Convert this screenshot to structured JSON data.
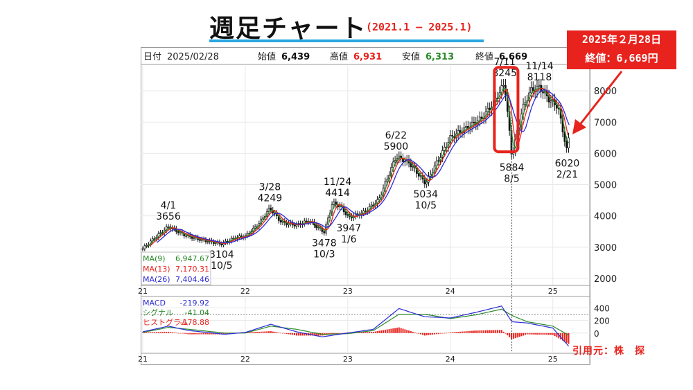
{
  "header": {
    "title": "週足チャート",
    "subtitle": "(2021.1 – 2025.1)"
  },
  "callout": {
    "line1": "2025年２月28日",
    "line2": "終値：6,669円",
    "source": "引用元：株　探"
  },
  "ohlc_bar": {
    "date_label": "日付",
    "date": "2025/02/28",
    "open_label": "始値",
    "open": "6,439",
    "high_label": "高値",
    "high": "6,931",
    "low_label": "安値",
    "low": "6,313",
    "close_label": "終値",
    "close": "6,669"
  },
  "colors": {
    "up": "#1a1a1a",
    "down": "#111111",
    "ma9": "#2a8a2a",
    "ma13": "#e8231e",
    "ma26": "#2a2ad8",
    "macd": "#2a2ad8",
    "signal": "#2a8a2a",
    "hist": "#e8231e",
    "accent": "#e8231e"
  },
  "chart_data": [
    {
      "type": "line",
      "ylim": [
        1800,
        8800
      ],
      "yticks": [
        2000,
        3000,
        4000,
        5000,
        6000,
        7000,
        8000
      ],
      "x_ticks": [
        "21",
        "22",
        "23",
        "24",
        "25"
      ],
      "x_tick_years": [
        2021.0,
        2022.0,
        2023.0,
        2024.0,
        2025.0
      ],
      "xlim": [
        2020.98,
        2025.36
      ],
      "price_path": [
        [
          2021.0,
          2950
        ],
        [
          2021.1,
          3250
        ],
        [
          2021.25,
          3656
        ],
        [
          2021.4,
          3400
        ],
        [
          2021.55,
          3250
        ],
        [
          2021.77,
          3104
        ],
        [
          2021.9,
          3300
        ],
        [
          2022.0,
          3350
        ],
        [
          2022.12,
          3700
        ],
        [
          2022.24,
          4249
        ],
        [
          2022.35,
          3800
        ],
        [
          2022.5,
          3700
        ],
        [
          2022.62,
          3850
        ],
        [
          2022.77,
          3478
        ],
        [
          2022.85,
          4414
        ],
        [
          2022.93,
          4300
        ],
        [
          2023.01,
          3947
        ],
        [
          2023.15,
          4100
        ],
        [
          2023.3,
          4500
        ],
        [
          2023.47,
          5900
        ],
        [
          2023.6,
          5700
        ],
        [
          2023.76,
          5034
        ],
        [
          2023.85,
          5600
        ],
        [
          2024.0,
          6500
        ],
        [
          2024.15,
          6800
        ],
        [
          2024.3,
          7100
        ],
        [
          2024.42,
          7600
        ],
        [
          2024.53,
          8245
        ],
        [
          2024.6,
          5884
        ],
        [
          2024.7,
          7400
        ],
        [
          2024.78,
          8000
        ],
        [
          2024.87,
          8118
        ],
        [
          2024.97,
          7700
        ],
        [
          2025.05,
          7500
        ],
        [
          2025.14,
          6020
        ],
        [
          2025.16,
          6669
        ]
      ],
      "annotations": [
        {
          "date": "4/1",
          "value": "3656",
          "x": 2021.25,
          "y": 3656,
          "pos": "above"
        },
        {
          "date": "3/28",
          "value": "4249",
          "x": 2022.24,
          "y": 4249,
          "pos": "above"
        },
        {
          "date": "11/24",
          "value": "4414",
          "x": 2022.9,
          "y": 4414,
          "pos": "above"
        },
        {
          "date": "6/22",
          "value": "5900",
          "x": 2023.47,
          "y": 5900,
          "pos": "above"
        },
        {
          "date": "7/11",
          "value": "8245",
          "x": 2024.53,
          "y": 8245,
          "pos": "above"
        },
        {
          "date": "11/14",
          "value": "8118",
          "x": 2024.87,
          "y": 8118,
          "pos": "above"
        },
        {
          "date": "10/5",
          "value": "3104",
          "x": 2021.77,
          "y": 3104,
          "pos": "below"
        },
        {
          "date": "10/3",
          "value": "3478",
          "x": 2022.77,
          "y": 3478,
          "pos": "below"
        },
        {
          "date": "1/6",
          "value": "3947",
          "x": 2023.01,
          "y": 3947,
          "pos": "below"
        },
        {
          "date": "10/5",
          "value": "5034",
          "x": 2023.76,
          "y": 5034,
          "pos": "below"
        },
        {
          "date": "8/5",
          "value": "5884",
          "x": 2024.6,
          "y": 5884,
          "pos": "below"
        },
        {
          "date": "2/21",
          "value": "6020",
          "x": 2025.14,
          "y": 6020,
          "pos": "below"
        }
      ],
      "moving_averages": [
        {
          "name": "MA(9)",
          "value": "6,947.67",
          "color": "#2a8a2a",
          "lag": 0.04
        },
        {
          "name": "MA(13)",
          "value": "7,170.31",
          "color": "#e8231e",
          "lag": 0.07
        },
        {
          "name": "MA(26)",
          "value": "7,404.46",
          "color": "#2a2ad8",
          "lag": 0.14
        }
      ],
      "highlight_box": {
        "x_start": 2024.43,
        "x_end": 2024.66,
        "y_low": 6050,
        "y_high": 8750
      },
      "vline_x": 2024.6
    },
    {
      "type": "line",
      "ylim": [
        -300,
        560
      ],
      "yticks": [
        400,
        200,
        0
      ],
      "series": [
        {
          "name": "MACD",
          "value": "-219.92",
          "color": "#2a2ad8"
        },
        {
          "name": "シグナル",
          "value": "-41.04",
          "color": "#2a8a2a"
        },
        {
          "name": "ヒストグラム",
          "value": "-178.88",
          "color": "#e8231e"
        }
      ],
      "x": [
        2021.0,
        2021.25,
        2021.45,
        2021.8,
        2022.0,
        2022.25,
        2022.5,
        2022.75,
        2023.0,
        2023.25,
        2023.5,
        2023.75,
        2024.0,
        2024.25,
        2024.5,
        2024.6,
        2024.75,
        2025.0,
        2025.16
      ],
      "macd": [
        20,
        110,
        40,
        -20,
        10,
        140,
        20,
        -60,
        0,
        60,
        390,
        260,
        240,
        330,
        430,
        180,
        160,
        80,
        -220
      ],
      "signal": [
        10,
        90,
        60,
        0,
        0,
        110,
        60,
        -20,
        -10,
        40,
        300,
        300,
        230,
        290,
        380,
        280,
        180,
        110,
        -41
      ]
    }
  ]
}
